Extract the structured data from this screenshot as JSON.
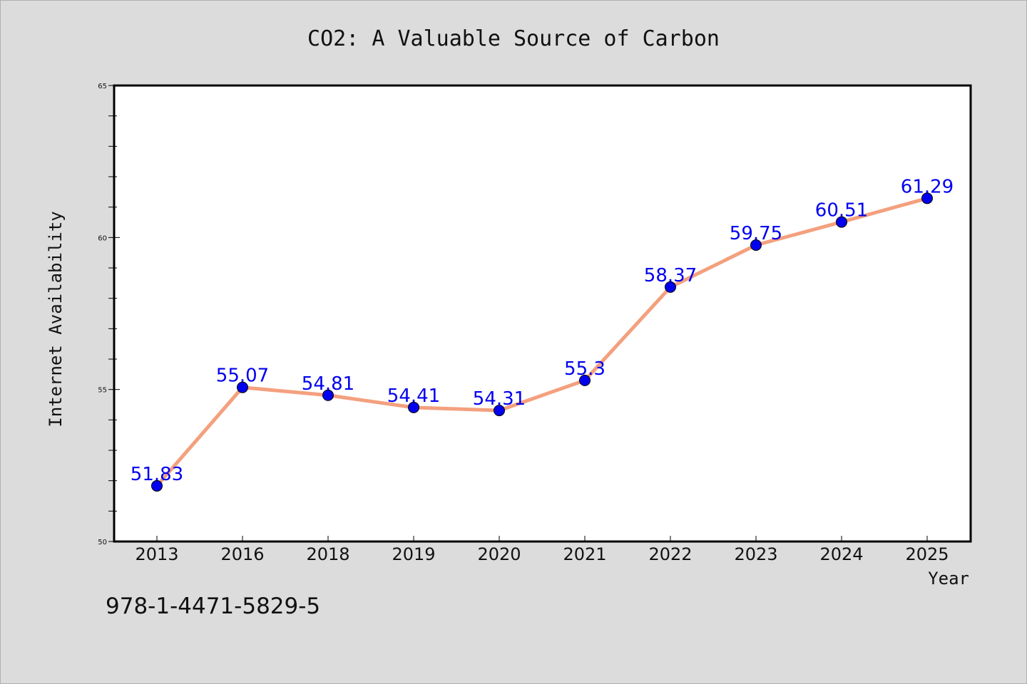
{
  "colors": {
    "background": "#dcdcdc",
    "plot_background": "#ffffff",
    "line": "#f4a07e",
    "marker": "#0000ee",
    "data_label": "#0000ee"
  },
  "footer": {
    "isbn": "978-1-4471-5829-5"
  },
  "chart_data": {
    "type": "line",
    "title": "CO2: A Valuable Source of Carbon",
    "xlabel": "Year",
    "ylabel": "Internet Availability",
    "categories": [
      "2013",
      "2016",
      "2018",
      "2019",
      "2020",
      "2021",
      "2022",
      "2023",
      "2024",
      "2025"
    ],
    "series": [
      {
        "values": [
          51.83,
          55.07,
          54.81,
          54.41,
          54.31,
          55.3,
          58.37,
          59.75,
          60.51,
          61.29
        ]
      }
    ],
    "data_labels": [
      "51.83",
      "55.07",
      "54.81",
      "54.41",
      "54.31",
      "55.3",
      "58.37",
      "59.75",
      "60.51",
      "61.29"
    ],
    "ylim": [
      50,
      65
    ],
    "yticks": [
      "50",
      "55",
      "60",
      "65"
    ],
    "grid": false,
    "legend": "none"
  }
}
